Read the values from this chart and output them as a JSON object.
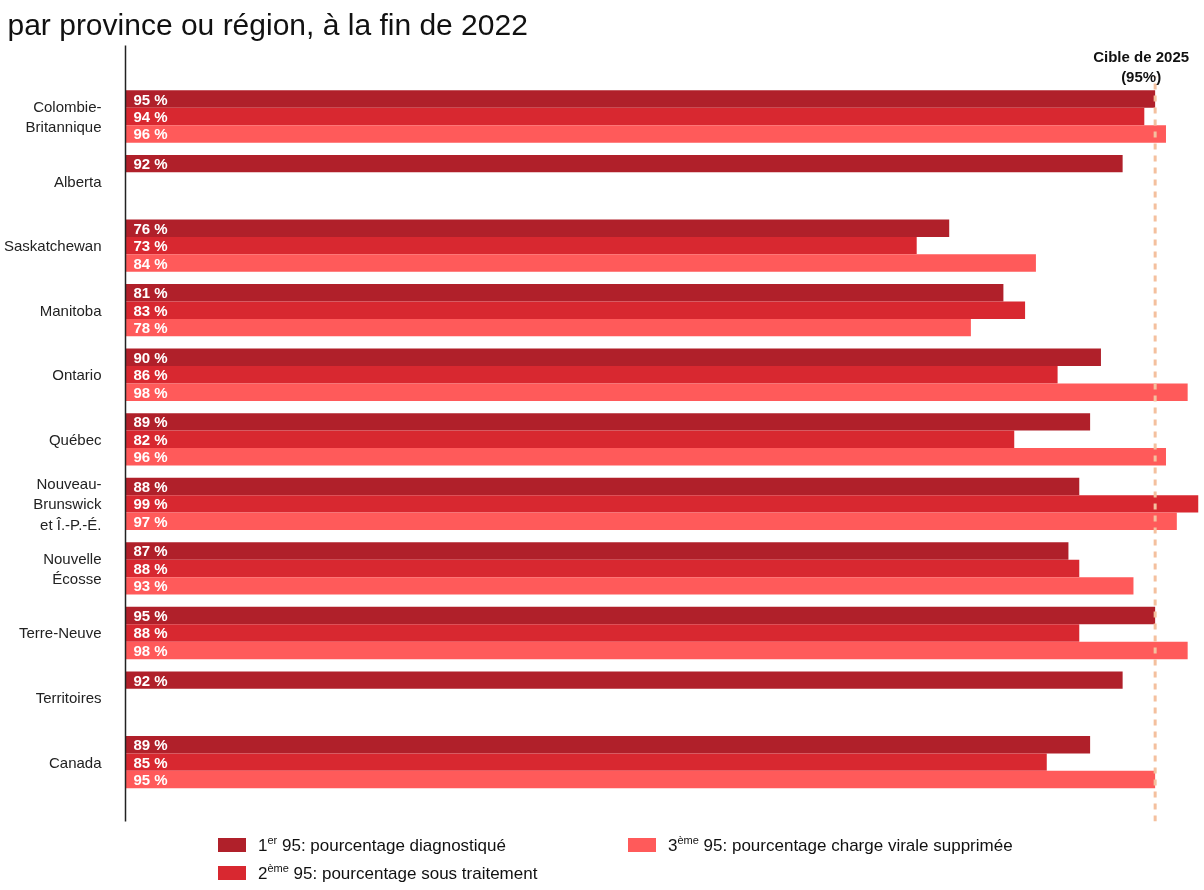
{
  "chart_data": {
    "type": "bar",
    "orientation": "horizontal",
    "title": "par province ou région, à la fin de 2022",
    "categories": [
      "Colombie-\nBritannique",
      "Alberta",
      "Saskatchewan",
      "Manitoba",
      "Ontario",
      "Québec",
      "Nouveau-\nBrunswick\net Î.-P.-É.",
      "Nouvelle\nÉcosse",
      "Terre-Neuve",
      "Territoires",
      "Canada"
    ],
    "series": [
      {
        "name": "1$^{er}$ 95: pourcentage diagnostiqué",
        "color": "#b0202a",
        "values": [
          95,
          92,
          76,
          81,
          90,
          89,
          88,
          87,
          95,
          92,
          89
        ],
        "value_labels": [
          "95 %",
          "92 %",
          "76 %",
          "81 %",
          "90 %",
          "89 %",
          "88 %",
          "87 %",
          "95 %",
          "92 %",
          "89 %"
        ]
      },
      {
        "name": "2$^{ème}$ 95: pourcentage sous traitement",
        "color": "#d82830",
        "values": [
          94,
          null,
          73,
          83,
          86,
          82,
          99,
          88,
          88,
          null,
          85
        ],
        "value_labels": [
          "94 %",
          null,
          "73 %",
          "83 %",
          "86 %",
          "82 %",
          "99 %",
          "88 %",
          "88 %",
          null,
          "85 %"
        ]
      },
      {
        "name": "3$^{ème}$ 95: pourcentage charge virale supprimée",
        "color": "#ff5a5a",
        "values": [
          96,
          null,
          84,
          78,
          98,
          96,
          97,
          93,
          98,
          null,
          95
        ],
        "value_labels": [
          "96 %",
          null,
          "84 %",
          "78 %",
          "98 %",
          "96 %",
          "97 %",
          "93 %",
          "98 %",
          null,
          "95 %"
        ]
      }
    ],
    "ref_lines": [
      {
        "axis": "x",
        "value": 95,
        "label": "Cible de 2025\n(95%)",
        "color": "#f4c09e",
        "line_style": "dashed"
      }
    ],
    "legend": "bottom",
    "tick_labels": "y"
  }
}
